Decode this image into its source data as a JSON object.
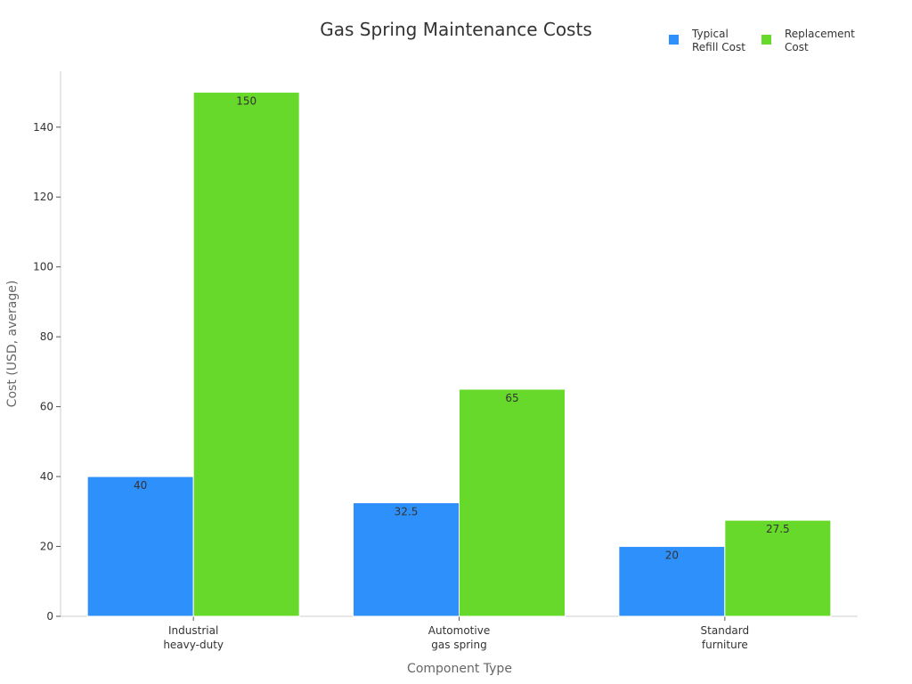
{
  "chart_data": {
    "type": "bar",
    "title": "Gas Spring Maintenance Costs",
    "xlabel": "Component Type",
    "ylabel": "Cost (USD, average)",
    "categories": [
      [
        "Industrial",
        "heavy-duty"
      ],
      [
        "Automotive",
        "gas spring"
      ],
      [
        "Standard",
        "furniture"
      ]
    ],
    "series": [
      {
        "name": [
          "Typical",
          "Refill Cost"
        ],
        "values": [
          40,
          32.5,
          20
        ],
        "labels": [
          "40",
          "32.5",
          "20"
        ],
        "color": "#2e90fa"
      },
      {
        "name": [
          "Replacement",
          "Cost"
        ],
        "values": [
          150,
          65,
          27.5
        ],
        "labels": [
          "150",
          "65",
          "27.5"
        ],
        "color": "#66d92a"
      }
    ],
    "ylim": [
      0,
      156
    ],
    "yticks": [
      0,
      20,
      40,
      60,
      80,
      100,
      120,
      140
    ],
    "ytick_labels": [
      "0",
      "20",
      "40",
      "60",
      "80",
      "100",
      "120",
      "140"
    ],
    "grid": false,
    "legend_position": "top-right"
  }
}
